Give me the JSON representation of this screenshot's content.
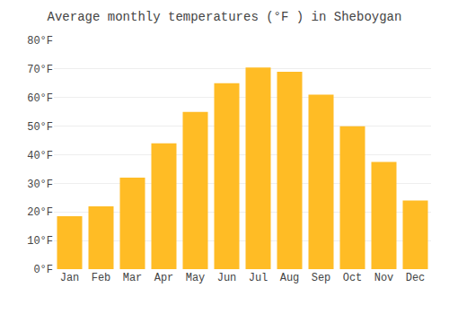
{
  "chart_data": {
    "type": "bar",
    "title": "Average monthly temperatures (°F ) in Sheboygan",
    "categories": [
      "Jan",
      "Feb",
      "Mar",
      "Apr",
      "May",
      "Jun",
      "Jul",
      "Aug",
      "Sep",
      "Oct",
      "Nov",
      "Dec"
    ],
    "values": [
      18.5,
      22,
      32,
      44,
      55,
      65,
      70.5,
      69,
      61,
      50,
      37.5,
      24
    ],
    "color": "#FFBC25",
    "ylim": [
      0,
      80
    ],
    "yticks": [
      {
        "value": 0,
        "label": "0°F"
      },
      {
        "value": 10,
        "label": "10°F"
      },
      {
        "value": 20,
        "label": "20°F"
      },
      {
        "value": 30,
        "label": "30°F"
      },
      {
        "value": 40,
        "label": "40°F"
      },
      {
        "value": 50,
        "label": "50°F"
      },
      {
        "value": 60,
        "label": "60°F"
      },
      {
        "value": 70,
        "label": "70°F"
      },
      {
        "value": 80,
        "label": "80°F"
      }
    ],
    "grid": true
  }
}
